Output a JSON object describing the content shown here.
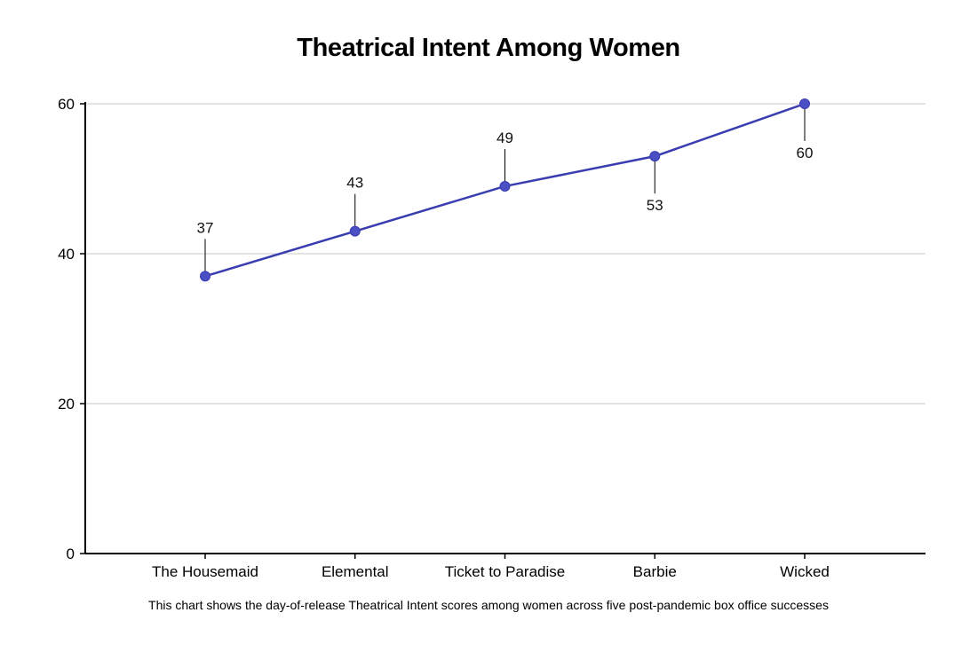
{
  "title": "Theatrical Intent Among Women",
  "caption": "This chart shows the day-of-release Theatrical Intent scores among women across five post-pandemic box office successes",
  "chart_data": {
    "type": "line",
    "title": "Theatrical Intent Among Women",
    "categories": [
      "The Housemaid",
      "Elemental",
      "Ticket to Paradise",
      "Barbie",
      "Wicked"
    ],
    "series": [
      {
        "values": [
          37,
          43,
          49,
          53,
          60
        ]
      }
    ],
    "data_labels": [
      "37",
      "43",
      "49",
      "53",
      "60"
    ],
    "label_position": [
      "above",
      "above",
      "above",
      "below",
      "below"
    ],
    "ylim": [
      0,
      60
    ],
    "yticks": [
      0,
      20,
      40,
      60
    ],
    "ytick_labels": [
      "0",
      "20",
      "40",
      "60"
    ],
    "xlabel": "",
    "ylabel": "",
    "grid": "horizontal",
    "line_color": "#3a3db0",
    "marker_color": "#4b4fc4"
  }
}
